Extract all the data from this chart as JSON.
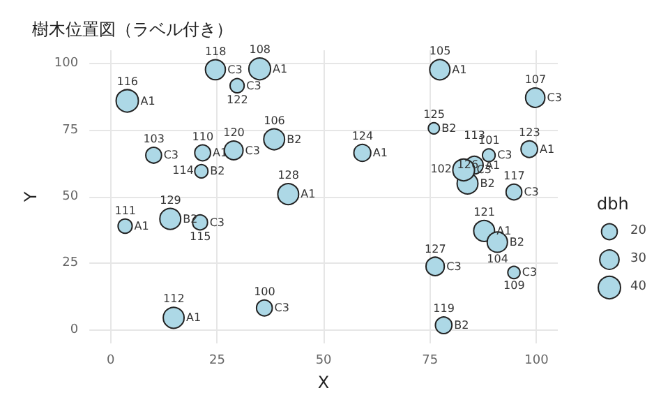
{
  "chart_data": {
    "type": "bubble",
    "title": "樹木位置図（ラベル付き）",
    "xlabel": "X",
    "ylabel": "Y",
    "legend_title": "dbh",
    "xlim": [
      -5,
      105
    ],
    "ylim": [
      -5,
      105
    ],
    "xticks": [
      0,
      25,
      50,
      75,
      100
    ],
    "yticks": [
      0,
      25,
      50,
      75,
      100
    ],
    "grid": true,
    "size_legend": [
      20,
      30,
      40
    ],
    "series": [
      {
        "name": "A1",
        "color": "#add8e6",
        "x": [
          35,
          3.9,
          21.6,
          41.7,
          3.4,
          14.8,
          77.3,
          59.1,
          98.3,
          85.4,
          87.7
        ],
        "values": [
          98,
          86,
          66.5,
          51,
          39,
          4.6,
          97.7,
          66.5,
          67.9,
          61.9,
          37.2
        ],
        "sizes": [
          38,
          40,
          20,
          35,
          16,
          35,
          33,
          23,
          22,
          25,
          35
        ]
      },
      {
        "name": "B2",
        "color": "#add8e6",
        "x": [
          21.3,
          38.4,
          14,
          75.9,
          83.8,
          90.8,
          78.2
        ],
        "values": [
          59.6,
          71.6,
          41.7,
          75.7,
          55,
          33,
          1.8
        ],
        "sizes": [
          14,
          35,
          35,
          10,
          35,
          33,
          22
        ]
      },
      {
        "name": "C3",
        "color": "#add8e6",
        "x": [
          24.6,
          29.7,
          10.1,
          28.9,
          21,
          36.1,
          99.7,
          88.8,
          82.9,
          94.7,
          76.2,
          94.7
        ],
        "values": [
          97.7,
          91.7,
          65.6,
          67.4,
          40.4,
          8.3,
          87.2,
          65.6,
          60.1,
          51.8,
          23.9,
          21.6
        ],
        "sizes": [
          32,
          16,
          20,
          28,
          18,
          20,
          30,
          13,
          38,
          20,
          27,
          12
        ]
      }
    ],
    "annotations": [
      {
        "text": "108",
        "x": 35,
        "y": 98
      },
      {
        "text": "116",
        "x": 3.9,
        "y": 86
      },
      {
        "text": "110",
        "x": 21.6,
        "y": 66.5
      },
      {
        "text": "128",
        "x": 41.7,
        "y": 51
      },
      {
        "text": "111",
        "x": 3.4,
        "y": 39
      },
      {
        "text": "112",
        "x": 14.8,
        "y": 4.6
      },
      {
        "text": "105",
        "x": 77.3,
        "y": 97.7
      },
      {
        "text": "124",
        "x": 59.1,
        "y": 66.5
      },
      {
        "text": "123",
        "x": 98.3,
        "y": 67.9
      },
      {
        "text": "113",
        "x": 85.4,
        "y": 61.9
      },
      {
        "text": "121",
        "x": 87.7,
        "y": 37.2
      },
      {
        "text": "114",
        "x": 21.3,
        "y": 59.6
      },
      {
        "text": "106",
        "x": 38.4,
        "y": 71.6
      },
      {
        "text": "129",
        "x": 14,
        "y": 41.7
      },
      {
        "text": "125",
        "x": 75.9,
        "y": 75.7
      },
      {
        "text": "126",
        "x": 83.8,
        "y": 55
      },
      {
        "text": "104",
        "x": 90.8,
        "y": 33
      },
      {
        "text": "119",
        "x": 78.2,
        "y": 1.8
      },
      {
        "text": "118",
        "x": 24.6,
        "y": 97.7
      },
      {
        "text": "122",
        "x": 29.7,
        "y": 91.7
      },
      {
        "text": "103",
        "x": 10.1,
        "y": 65.6
      },
      {
        "text": "120",
        "x": 28.9,
        "y": 67.4
      },
      {
        "text": "115",
        "x": 21,
        "y": 40.4
      },
      {
        "text": "100",
        "x": 36.1,
        "y": 8.3
      },
      {
        "text": "107",
        "x": 99.7,
        "y": 87.2
      },
      {
        "text": "101",
        "x": 88.8,
        "y": 65.6
      },
      {
        "text": "102",
        "x": 82.9,
        "y": 60.1
      },
      {
        "text": "117",
        "x": 94.7,
        "y": 51.8
      },
      {
        "text": "127",
        "x": 76.2,
        "y": 23.9
      },
      {
        "text": "109",
        "x": 94.7,
        "y": 21.6
      }
    ]
  }
}
